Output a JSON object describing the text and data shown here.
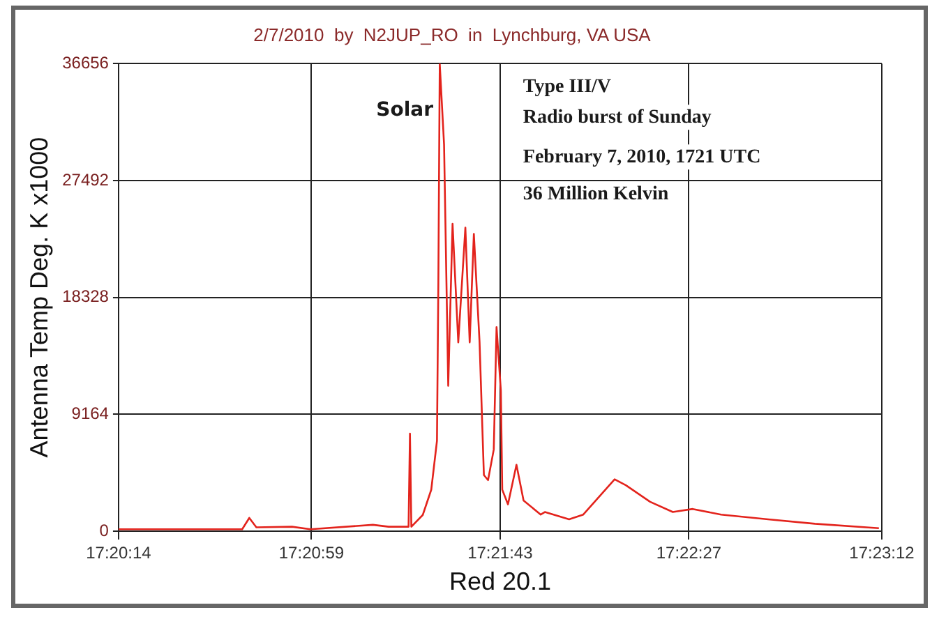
{
  "chart_data": {
    "type": "line",
    "title": "2/7/2010  by  N2JUP_RO  in  Lynchburg, VA USA",
    "xlabel": "Red 20.1",
    "ylabel": "Antenna Temp Deg. K x1000",
    "annotations": [
      "Solar",
      "Type III/V",
      "Radio burst of Sunday",
      "February 7, 2010, 1721 UTC",
      "36 Million Kelvin"
    ],
    "series": [
      {
        "color": "#e3231c",
        "x": [
          17.33722,
          17.34523,
          17.34569,
          17.34615,
          17.34846,
          17.34965,
          17.3537,
          17.35472,
          17.35601,
          17.3561,
          17.35619,
          17.35693,
          17.35748,
          17.35785,
          17.35794,
          17.35803,
          17.35831,
          17.35858,
          17.35886,
          17.35923,
          17.35969,
          17.35997,
          17.36024,
          17.36061,
          17.36089,
          17.36116,
          17.36153,
          17.36171,
          17.36199,
          17.36208,
          17.36245,
          17.363,
          17.36346,
          17.36457,
          17.36484,
          17.36641,
          17.36733,
          17.36936,
          17.37009,
          17.37166,
          17.37313,
          17.37442,
          17.37626,
          17.3793,
          17.38234,
          17.38648
        ],
        "values": [
          150,
          150,
          1040,
          300,
          350,
          150,
          500,
          350,
          350,
          7650,
          350,
          1270,
          3250,
          7080,
          19500,
          36656,
          30300,
          11400,
          24100,
          14800,
          23800,
          14800,
          23300,
          14800,
          4400,
          4000,
          6400,
          16000,
          11000,
          3250,
          2100,
          5200,
          2400,
          1300,
          1500,
          930,
          1300,
          4060,
          3600,
          2300,
          1500,
          1740,
          1300,
          930,
          580,
          230
        ]
      }
    ],
    "xlim": [
      17.33722,
      17.38667
    ],
    "xticks": [
      {
        "value": 17.33722,
        "label": "17:20:14"
      },
      {
        "value": 17.34972,
        "label": "17:20:59"
      },
      {
        "value": 17.36194,
        "label": "17:21:43"
      },
      {
        "value": 17.37417,
        "label": "17:22:27"
      },
      {
        "value": 17.38667,
        "label": "17:23:12"
      }
    ],
    "ylim": [
      0,
      36656
    ],
    "yticks": [
      0,
      9164,
      18328,
      27492,
      36656
    ],
    "grid": true,
    "marker": "none",
    "line_style": "solid"
  }
}
